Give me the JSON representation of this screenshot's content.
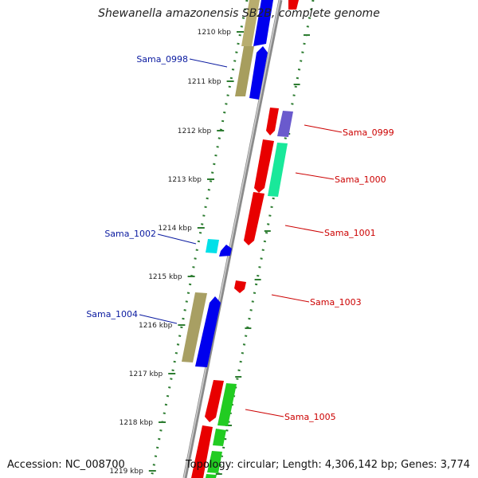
{
  "title": "Shewanella amazonensis SB2B, complete genome",
  "accession": "Accession: NC_008700",
  "summary": "Topology: circular; Length: 4,306,142 bp; Genes: 3,774",
  "colors": {
    "backbone": "#8a8a8a",
    "ruler": "#2e7d32",
    "forward_label": "#0a1aa0",
    "reverse_label": "#cc0000"
  },
  "ticks": [
    "1210 kbp",
    "1211 kbp",
    "1212 kbp",
    "1213 kbp",
    "1214 kbp",
    "1215 kbp",
    "1216 kbp",
    "1217 kbp",
    "1218 kbp",
    "1219 kbp"
  ],
  "gene_labels": [
    {
      "text": "Sama_0998",
      "strand": "forward"
    },
    {
      "text": "Sama_0999",
      "strand": "reverse"
    },
    {
      "text": "Sama_1000",
      "strand": "reverse"
    },
    {
      "text": "Sama_1001",
      "strand": "reverse"
    },
    {
      "text": "Sama_1002",
      "strand": "forward"
    },
    {
      "text": "Sama_1003",
      "strand": "reverse"
    },
    {
      "text": "Sama_1004",
      "strand": "forward"
    },
    {
      "text": "Sama_1005",
      "strand": "reverse"
    }
  ]
}
